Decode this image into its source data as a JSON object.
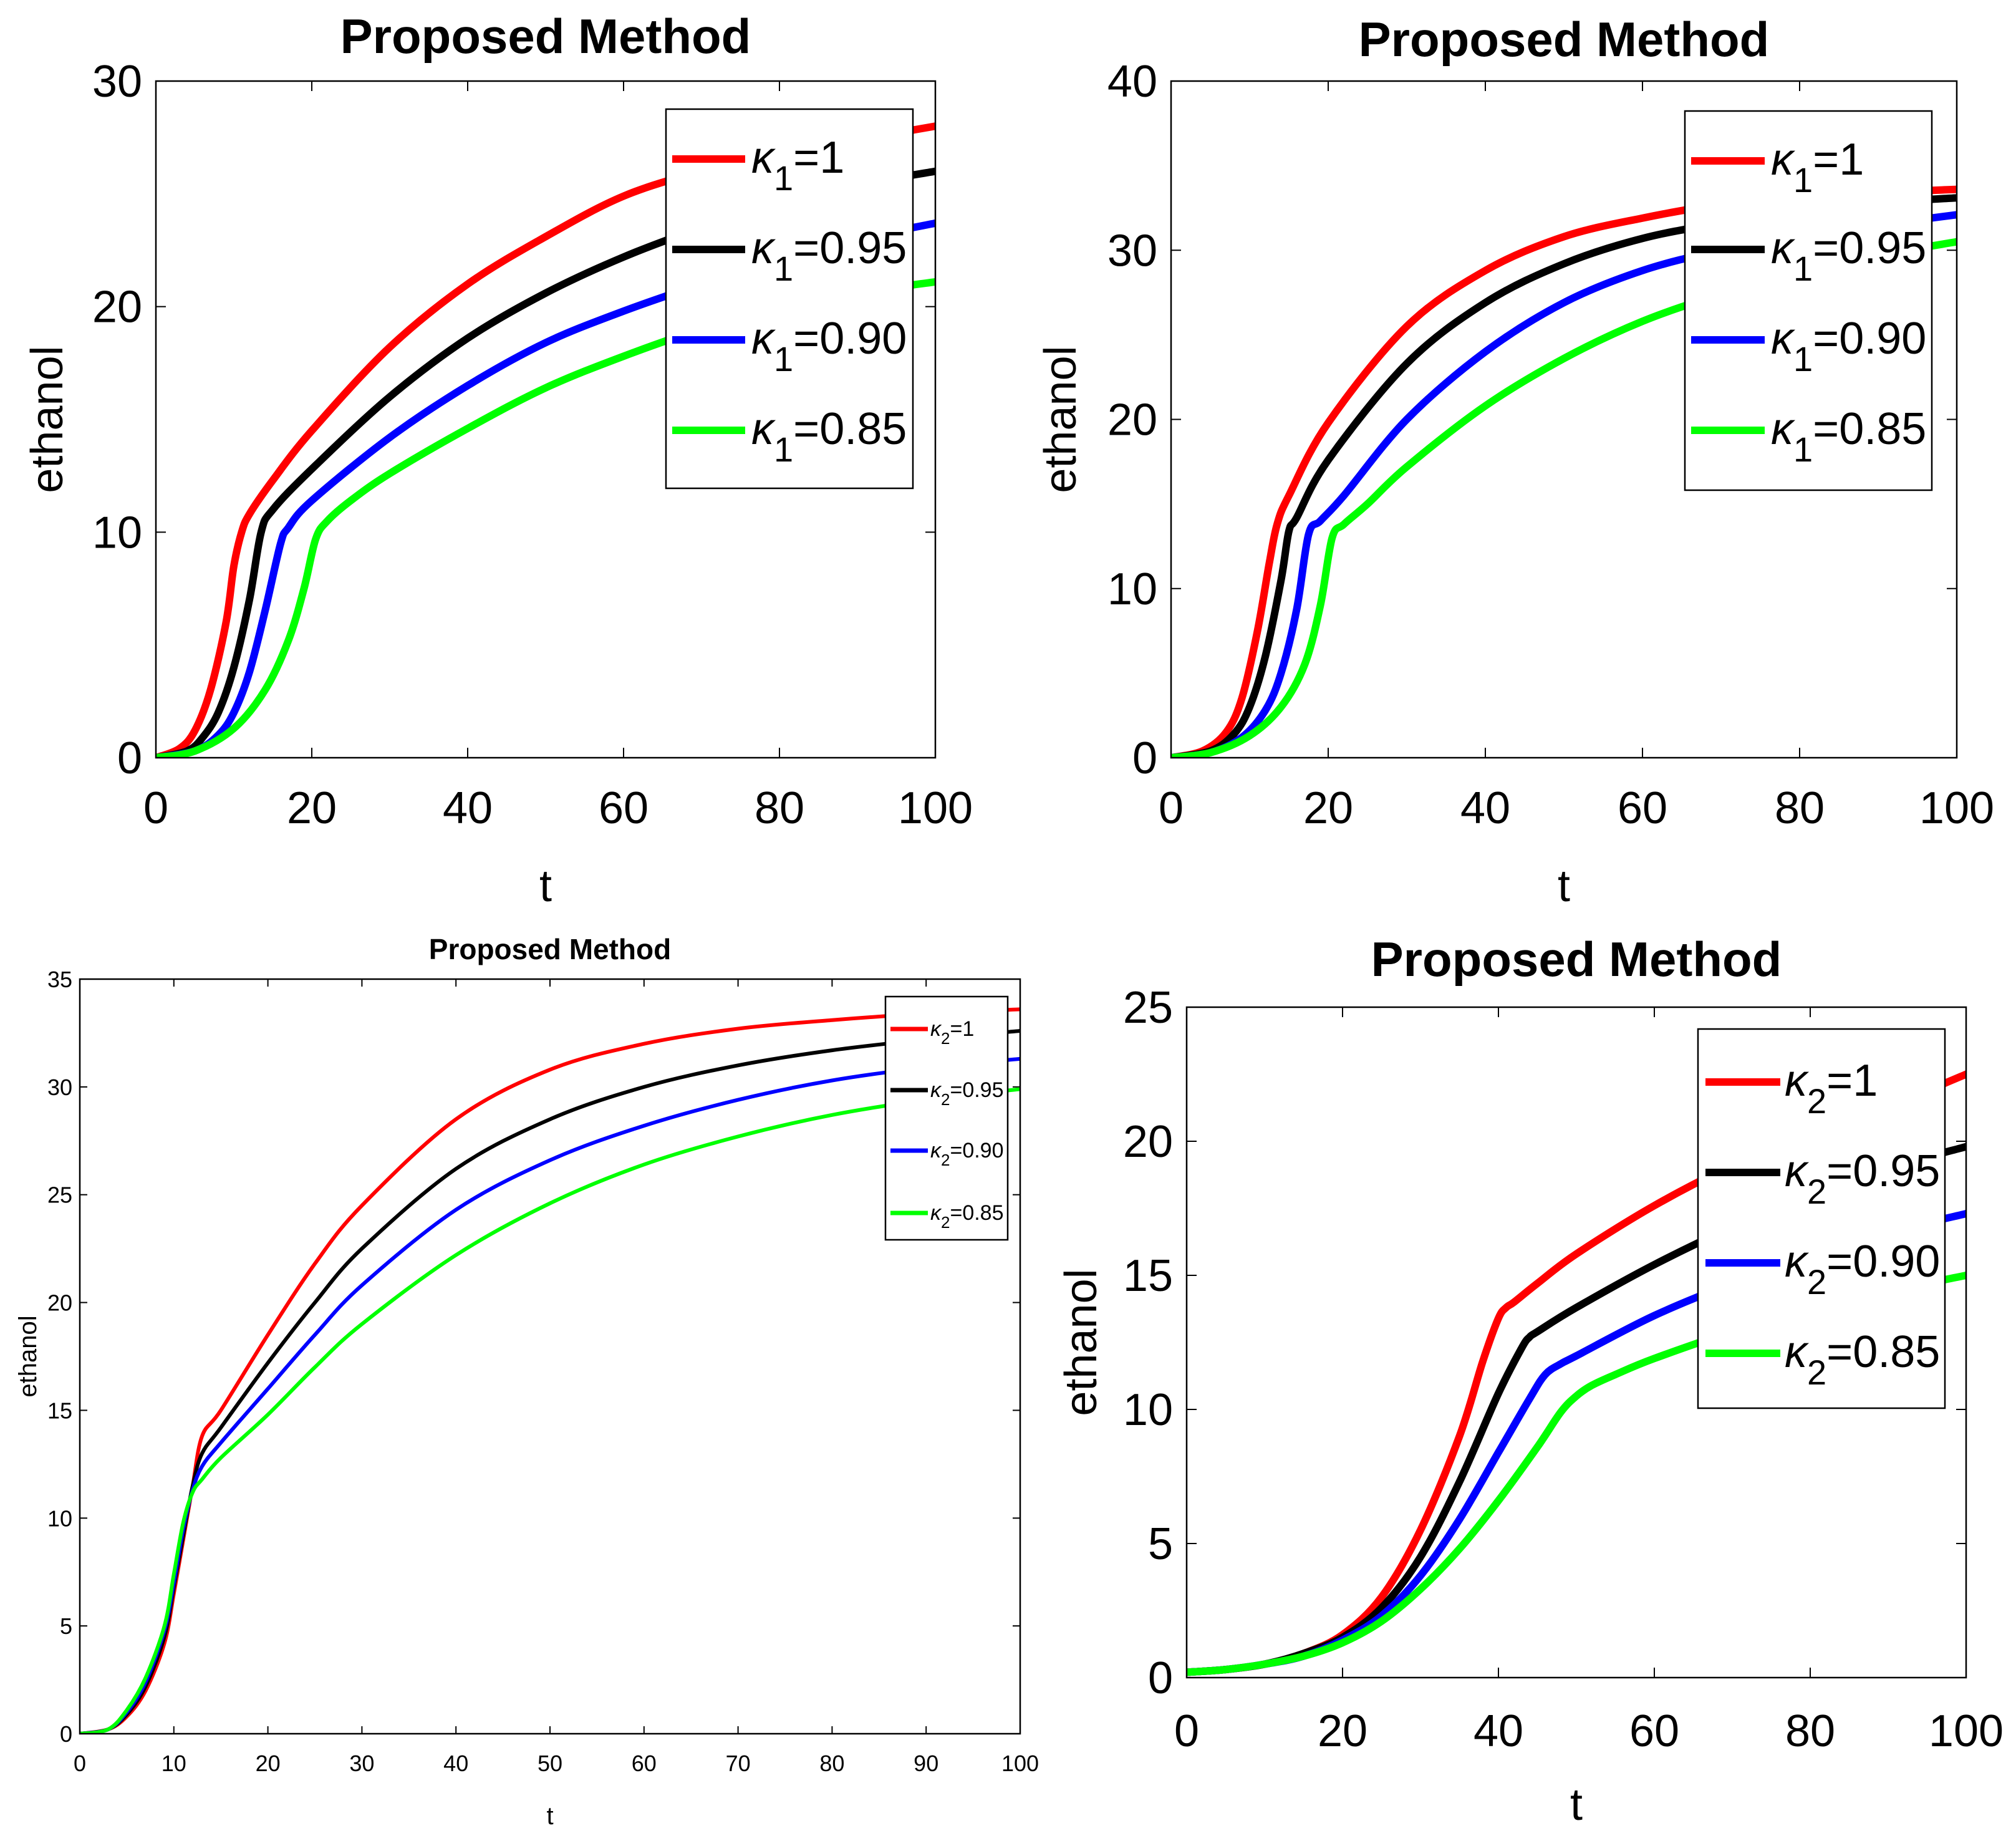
{
  "chart_data": [
    {
      "type": "line",
      "title": "Proposed Method",
      "xlabel": "t",
      "ylabel": "ethanol",
      "xlim": [
        0,
        100
      ],
      "ylim": [
        0,
        30
      ],
      "xticks": [
        "0",
        "20",
        "40",
        "60",
        "80",
        "100"
      ],
      "yticks": [
        "0",
        "10",
        "20",
        "30"
      ],
      "legend_position": "top-right",
      "series": [
        {
          "name": "κ1=1",
          "legend_symbol": "κ",
          "legend_sub": "1",
          "legend_value": "=1",
          "color": "#ff0000",
          "x": [
            0,
            3,
            5,
            7,
            9,
            10,
            11,
            12,
            15,
            20,
            30,
            40,
            50,
            60,
            70,
            80,
            90,
            100
          ],
          "y": [
            0,
            0.4,
            1.2,
            3.0,
            6.0,
            8.5,
            10.0,
            10.8,
            12.3,
            14.5,
            18.2,
            21.0,
            23.1,
            24.9,
            26.0,
            26.8,
            27.4,
            28.0
          ]
        },
        {
          "name": "κ1=0.95",
          "legend_symbol": "κ",
          "legend_sub": "1",
          "legend_value": "=0.95",
          "color": "#000000",
          "x": [
            0,
            4,
            6,
            8,
            10,
            12,
            13.5,
            15,
            20,
            30,
            40,
            50,
            60,
            70,
            80,
            90,
            100
          ],
          "y": [
            0,
            0.3,
            0.9,
            2.0,
            4.0,
            7.0,
            10.0,
            11.0,
            12.8,
            16.0,
            18.6,
            20.6,
            22.2,
            23.5,
            24.6,
            25.4,
            26.0
          ]
        },
        {
          "name": "κ1=0.90",
          "legend_symbol": "κ",
          "legend_sub": "1",
          "legend_value": "=0.90",
          "color": "#0000ff",
          "x": [
            0,
            5,
            8,
            10,
            12,
            14,
            16,
            17,
            20,
            30,
            40,
            50,
            60,
            70,
            80,
            90,
            100
          ],
          "y": [
            0,
            0.3,
            1.0,
            2.0,
            3.8,
            6.5,
            9.5,
            10.2,
            11.4,
            14.2,
            16.5,
            18.4,
            19.8,
            21.0,
            22.1,
            23.0,
            23.7
          ]
        },
        {
          "name": "κ1=0.85",
          "legend_symbol": "κ",
          "legend_sub": "1",
          "legend_value": "=0.85",
          "color": "#00ff00",
          "x": [
            0,
            5,
            10,
            14,
            17,
            19,
            20.5,
            22,
            25,
            30,
            40,
            50,
            60,
            70,
            80,
            90,
            100
          ],
          "y": [
            0,
            0.3,
            1.3,
            3.0,
            5.2,
            7.5,
            9.7,
            10.5,
            11.4,
            12.6,
            14.6,
            16.4,
            17.8,
            19.0,
            19.9,
            20.6,
            21.1
          ]
        }
      ]
    },
    {
      "type": "line",
      "title": "Proposed Method",
      "xlabel": "t",
      "ylabel": "ethanol",
      "xlim": [
        0,
        100
      ],
      "ylim": [
        0,
        40
      ],
      "xticks": [
        "0",
        "20",
        "40",
        "60",
        "80",
        "100"
      ],
      "yticks": [
        "0",
        "10",
        "20",
        "30",
        "40"
      ],
      "legend_position": "top-right",
      "series": [
        {
          "name": "κ1=1",
          "legend_symbol": "κ",
          "legend_sub": "1",
          "legend_value": "=1",
          "color": "#ff0000",
          "x": [
            0,
            4,
            7,
            9,
            11,
            12.5,
            13.5,
            15,
            20,
            30,
            40,
            50,
            60,
            70,
            80,
            90,
            100
          ],
          "y": [
            0,
            0.4,
            1.5,
            3.5,
            7.5,
            11.5,
            13.8,
            15.5,
            19.8,
            25.5,
            28.8,
            30.8,
            31.9,
            32.7,
            33.1,
            33.4,
            33.6
          ]
        },
        {
          "name": "κ1=0.95",
          "legend_symbol": "κ",
          "legend_sub": "1",
          "legend_value": "=0.95",
          "color": "#000000",
          "x": [
            0,
            5,
            8,
            10,
            12,
            14,
            15,
            16,
            20,
            30,
            40,
            50,
            60,
            70,
            80,
            90,
            100
          ],
          "y": [
            0,
            0.4,
            1.4,
            3.0,
            6.0,
            10.5,
            13.4,
            14.2,
            17.6,
            23.3,
            26.9,
            29.2,
            30.7,
            31.6,
            32.3,
            32.8,
            33.1
          ]
        },
        {
          "name": "κ1=0.90",
          "legend_symbol": "κ",
          "legend_sub": "1",
          "legend_value": "=0.90",
          "color": "#0000ff",
          "x": [
            0,
            5,
            9,
            12,
            14,
            16,
            17.5,
            19,
            22,
            30,
            40,
            50,
            60,
            70,
            80,
            90,
            100
          ],
          "y": [
            0,
            0.3,
            1.2,
            2.8,
            5.0,
            8.8,
            13.2,
            14.0,
            15.5,
            20.0,
            24.0,
            26.9,
            28.8,
            30.0,
            30.9,
            31.5,
            32.1
          ]
        },
        {
          "name": "κ1=0.85",
          "legend_symbol": "κ",
          "legend_sub": "1",
          "legend_value": "=0.85",
          "color": "#00ff00",
          "x": [
            0,
            5,
            10,
            14,
            17,
            19,
            20.5,
            22,
            25,
            30,
            40,
            50,
            60,
            70,
            80,
            90,
            100
          ],
          "y": [
            0,
            0.3,
            1.3,
            3.0,
            5.5,
            9.0,
            13.0,
            13.8,
            15.0,
            17.2,
            20.8,
            23.6,
            25.8,
            27.4,
            28.7,
            29.7,
            30.5
          ]
        }
      ]
    },
    {
      "type": "line",
      "title": "Proposed Method",
      "xlabel": "t",
      "ylabel": "ethanol",
      "xlim": [
        0,
        100
      ],
      "ylim": [
        0,
        35
      ],
      "xticks": [
        "0",
        "10",
        "20",
        "30",
        "40",
        "50",
        "60",
        "70",
        "80",
        "90",
        "100"
      ],
      "yticks": [
        "0",
        "5",
        "10",
        "15",
        "20",
        "25",
        "30",
        "35"
      ],
      "legend_position": "top-right",
      "series": [
        {
          "name": "κ2=1",
          "legend_symbol": "κ",
          "legend_sub": "2",
          "legend_value": "=1",
          "color": "#ff0000",
          "x": [
            0,
            3,
            5,
            7,
            9,
            10,
            11,
            12,
            13,
            15,
            20,
            25,
            30,
            40,
            50,
            60,
            70,
            80,
            90,
            100
          ],
          "y": [
            0,
            0.2,
            0.8,
            2.0,
            4.2,
            6.5,
            9.0,
            11.5,
            13.8,
            15.0,
            18.5,
            21.8,
            24.5,
            28.5,
            30.8,
            32.0,
            32.7,
            33.1,
            33.4,
            33.6
          ]
        },
        {
          "name": "κ2=0.95",
          "legend_symbol": "κ",
          "legend_sub": "2",
          "legend_value": "=0.95",
          "color": "#000000",
          "x": [
            0,
            3,
            5,
            7,
            9,
            10,
            11,
            12,
            13,
            15,
            20,
            25,
            30,
            40,
            50,
            60,
            70,
            80,
            90,
            100
          ],
          "y": [
            0,
            0.2,
            0.9,
            2.2,
            4.5,
            6.8,
            9.2,
            11.5,
            13.0,
            14.2,
            17.2,
            20.0,
            22.5,
            26.2,
            28.5,
            30.0,
            31.0,
            31.7,
            32.2,
            32.6
          ]
        },
        {
          "name": "κ2=0.90",
          "legend_symbol": "κ",
          "legend_sub": "2",
          "legend_value": "=0.90",
          "color": "#0000ff",
          "x": [
            0,
            3,
            5,
            7,
            9,
            10,
            11,
            12,
            13,
            15,
            20,
            25,
            30,
            40,
            50,
            60,
            70,
            80,
            90,
            100
          ],
          "y": [
            0,
            0.2,
            1.0,
            2.4,
            4.8,
            7.0,
            9.5,
            11.3,
            12.4,
            13.5,
            16.0,
            18.5,
            20.8,
            24.3,
            26.6,
            28.2,
            29.4,
            30.3,
            30.9,
            31.3
          ]
        },
        {
          "name": "κ2=0.85",
          "legend_symbol": "κ",
          "legend_sub": "2",
          "legend_value": "=0.85",
          "color": "#00ff00",
          "x": [
            0,
            3,
            5,
            7,
            9,
            10,
            11,
            12,
            13,
            15,
            20,
            25,
            30,
            40,
            50,
            60,
            70,
            80,
            90,
            100
          ],
          "y": [
            0,
            0.2,
            1.1,
            2.6,
            5.0,
            7.4,
            9.8,
            11.2,
            11.8,
            12.8,
            14.8,
            17.0,
            19.0,
            22.2,
            24.6,
            26.4,
            27.7,
            28.7,
            29.4,
            29.9
          ]
        }
      ]
    },
    {
      "type": "line",
      "title": "Proposed Method",
      "xlabel": "t",
      "ylabel": "ethanol",
      "xlim": [
        0,
        100
      ],
      "ylim": [
        0,
        25
      ],
      "xticks": [
        "0",
        "20",
        "40",
        "60",
        "80",
        "100"
      ],
      "yticks": [
        "0",
        "5",
        "10",
        "15",
        "20",
        "25"
      ],
      "legend_position": "top-right",
      "series": [
        {
          "name": "κ2=1",
          "legend_symbol": "κ",
          "legend_sub": "2",
          "legend_value": "=1",
          "color": "#ff0000",
          "x": [
            0,
            5,
            10,
            15,
            20,
            25,
            30,
            35,
            38,
            40,
            41,
            42,
            45,
            50,
            60,
            70,
            80,
            90,
            100
          ],
          "y": [
            0.2,
            0.3,
            0.5,
            0.9,
            1.6,
            3.0,
            5.5,
            9.0,
            11.8,
            13.4,
            13.8,
            14.0,
            14.7,
            15.8,
            17.6,
            19.1,
            20.3,
            21.3,
            22.5
          ]
        },
        {
          "name": "κ2=0.95",
          "legend_symbol": "κ",
          "legend_sub": "2",
          "legend_value": "=0.95",
          "color": "#000000",
          "x": [
            0,
            5,
            10,
            15,
            20,
            25,
            30,
            35,
            40,
            43,
            44,
            45,
            50,
            60,
            70,
            80,
            90,
            100
          ],
          "y": [
            0.2,
            0.3,
            0.5,
            0.9,
            1.5,
            2.6,
            4.5,
            7.3,
            10.6,
            12.3,
            12.7,
            12.9,
            13.8,
            15.4,
            16.8,
            18.0,
            19.0,
            19.8
          ]
        },
        {
          "name": "κ2=0.90",
          "legend_symbol": "κ",
          "legend_sub": "2",
          "legend_value": "=0.90",
          "color": "#0000ff",
          "x": [
            0,
            5,
            10,
            15,
            20,
            25,
            30,
            35,
            40,
            44,
            46,
            48,
            50,
            60,
            70,
            80,
            90,
            100
          ],
          "y": [
            0.2,
            0.3,
            0.5,
            0.8,
            1.4,
            2.3,
            3.8,
            5.9,
            8.4,
            10.4,
            11.3,
            11.7,
            12.0,
            13.5,
            14.7,
            15.7,
            16.6,
            17.3
          ]
        },
        {
          "name": "κ2=0.85",
          "legend_symbol": "κ",
          "legend_sub": "2",
          "legend_value": "=0.85",
          "color": "#00ff00",
          "x": [
            0,
            5,
            10,
            15,
            20,
            25,
            30,
            35,
            40,
            45,
            48,
            50,
            52,
            55,
            60,
            70,
            80,
            90,
            100
          ],
          "y": [
            0.2,
            0.3,
            0.5,
            0.8,
            1.3,
            2.1,
            3.3,
            4.8,
            6.6,
            8.6,
            9.9,
            10.5,
            10.9,
            11.3,
            11.9,
            12.9,
            13.7,
            14.4,
            15.0
          ]
        }
      ]
    }
  ]
}
